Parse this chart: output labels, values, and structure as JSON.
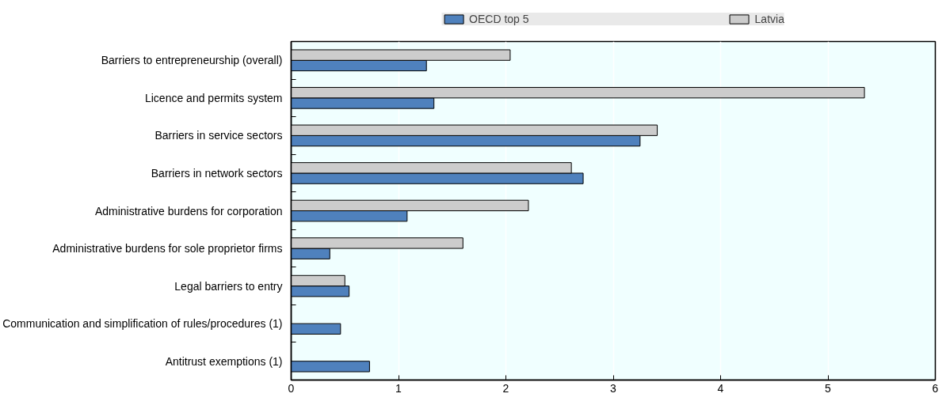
{
  "chart_data": {
    "type": "bar",
    "orientation": "horizontal",
    "categories": [
      "Barriers to entrepreneurship (overall)",
      "Licence and permits system",
      "Barriers in service sectors",
      "Barriers in network sectors",
      "Administrative burdens for corporation",
      "Administrative burdens for sole proprietor firms",
      "Legal barriers to entry",
      "Communication and simplification of rules/procedures (1)",
      "Antitrust exemptions (1)"
    ],
    "series": [
      {
        "name": "OECD top 5",
        "color": "#4f81bd",
        "values": [
          1.26,
          1.33,
          3.25,
          2.72,
          1.08,
          0.36,
          0.54,
          0.46,
          0.73
        ]
      },
      {
        "name": "Latvia",
        "color": "#cccccc",
        "values": [
          2.04,
          5.34,
          3.41,
          2.61,
          2.21,
          1.6,
          0.5,
          null,
          null
        ]
      }
    ],
    "xlim": [
      0,
      6
    ],
    "xticks": [
      0,
      1,
      2,
      3,
      4,
      5,
      6
    ],
    "grid": "x",
    "legend": "top"
  }
}
